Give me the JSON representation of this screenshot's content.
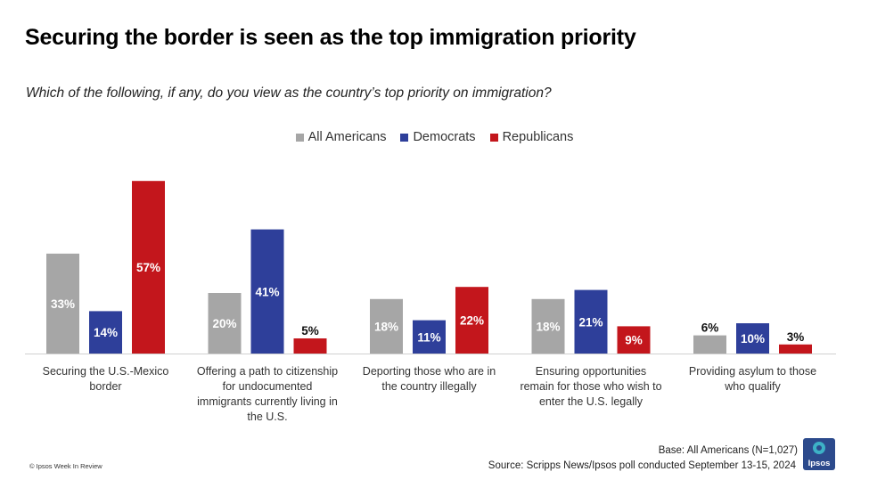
{
  "title": "Securing the border is seen as the top immigration priority",
  "subtitle": "Which of the following, if any, do you view as the country’s top priority on immigration?",
  "colors": {
    "all_americans": "#a6a6a6",
    "democrats": "#2e3f9a",
    "republicans": "#c3161c",
    "baseline": "#d0d0d0"
  },
  "chart_data": {
    "type": "bar",
    "categories": [
      "Securing the U.S.-Mexico border",
      "Offering a path to citizenship for undocumented immigrants currently living in the U.S.",
      "Deporting those who are in the country illegally",
      "Ensuring opportunities remain for those who wish to enter the U.S. legally",
      "Providing asylum to those who qualify"
    ],
    "category_lines": [
      [
        "Securing the U.S.-Mexico",
        "border"
      ],
      [
        "Offering a path to citizenship",
        "for undocumented",
        "immigrants currently living in",
        "the U.S."
      ],
      [
        "Deporting those who are in",
        "the country illegally"
      ],
      [
        "Ensuring opportunities",
        "remain for those who wish to",
        "enter the U.S. legally"
      ],
      [
        "Providing asylum to those",
        "who qualify"
      ]
    ],
    "series": [
      {
        "name": "All Americans",
        "values": [
          33,
          20,
          18,
          18,
          6
        ],
        "labels": [
          "33%",
          "20%",
          "18%",
          "18%",
          "6%"
        ]
      },
      {
        "name": "Democrats",
        "values": [
          14,
          41,
          11,
          21,
          10
        ],
        "labels": [
          "14%",
          "41%",
          "11%",
          "21%",
          "10%"
        ]
      },
      {
        "name": "Republicans",
        "values": [
          57,
          5,
          22,
          9,
          3
        ],
        "labels": [
          "57%",
          "5%",
          "22%",
          "9%",
          "3%"
        ]
      }
    ],
    "units": "%",
    "legend_position": "top-center",
    "grid": false
  },
  "footer": {
    "base": "Base: All Americans (N=1,027)",
    "source": "Source: Scripps News/Ipsos poll conducted September 13-15, 2024",
    "copyright": "© Ipsos Week In Review",
    "logo_text": "Ipsos"
  }
}
